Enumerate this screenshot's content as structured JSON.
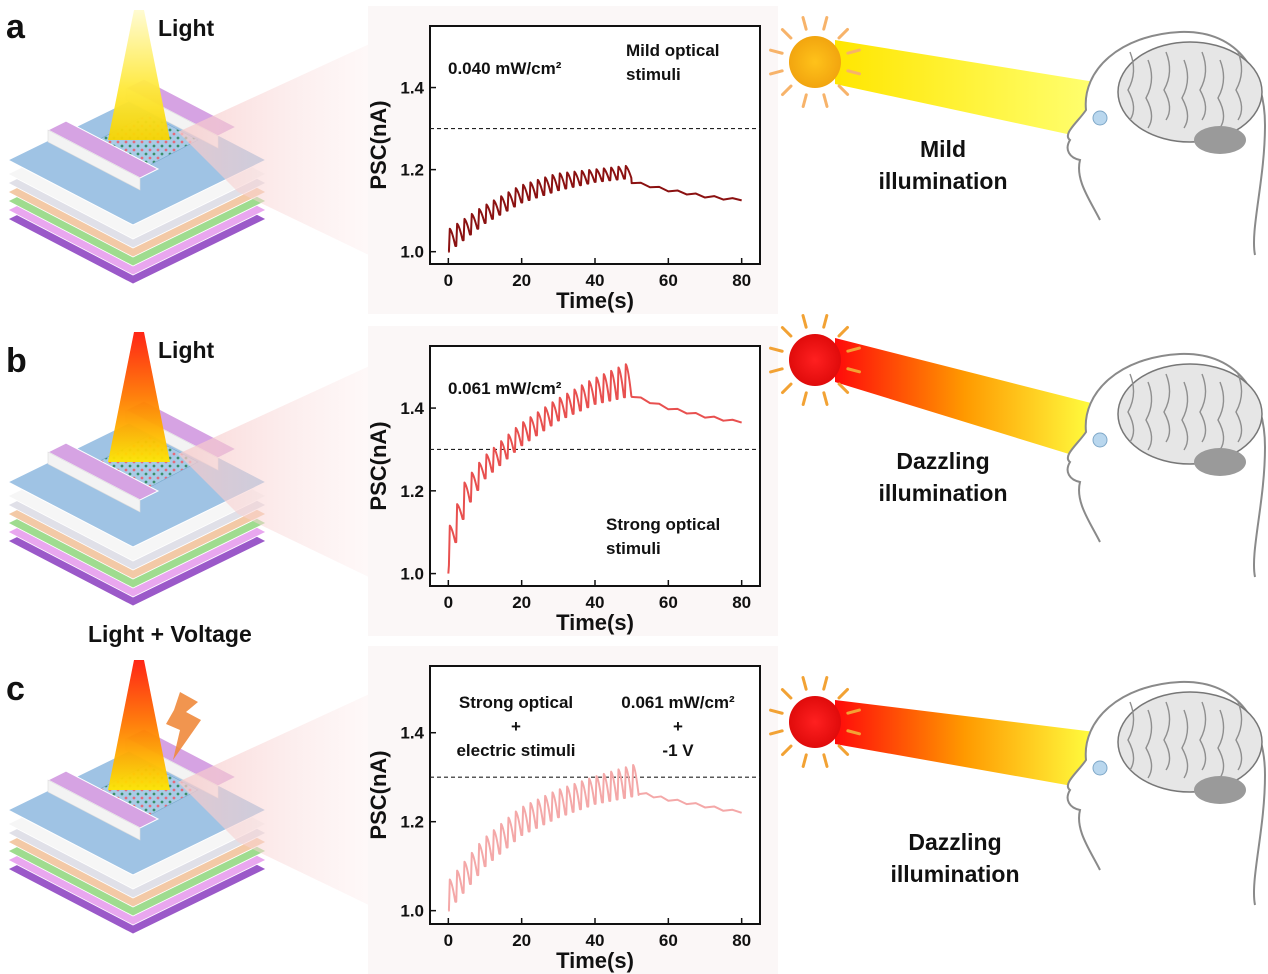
{
  "panels": [
    {
      "letter": "a",
      "stimulus_label": "Light",
      "annotation_left": [
        "0.040 mW/cm²"
      ],
      "annotation_right": [
        "Mild  optical",
        "stimuli"
      ],
      "sun_color": "#f5b31a",
      "beam_colors": [
        "#ffd400",
        "#ffff66"
      ],
      "brain_caption": [
        "Mild",
        "illumination"
      ]
    },
    {
      "letter": "b",
      "stimulus_label": "Light",
      "annotation_left": [
        "0.061 mW/cm²"
      ],
      "annotation_right": [
        "Strong optical",
        "stimuli"
      ],
      "sun_color": "#ee1c1c",
      "beam_colors": [
        "#ff0000",
        "#ffff33"
      ],
      "brain_caption": [
        "Dazzling",
        "illumination"
      ]
    },
    {
      "letter": "c",
      "stimulus_label": "Light + Voltage",
      "annotation_left": [
        "Strong optical",
        "+",
        "electric stimuli"
      ],
      "annotation_right": [
        "0.061 mW/cm²",
        "+",
        "-1 V"
      ],
      "sun_color": "#ee1c1c",
      "beam_colors": [
        "#ff0000",
        "#ffff33"
      ],
      "brain_caption": [
        "Dazzling",
        "illumination"
      ]
    }
  ],
  "chart_data": [
    {
      "type": "line",
      "xlabel": "Time(s)",
      "ylabel": "PSC(nA)",
      "xlim": [
        -5,
        85
      ],
      "ylim": [
        0.97,
        1.55
      ],
      "xticks": [
        0,
        20,
        40,
        60,
        80
      ],
      "yticks": [
        1.0,
        1.2,
        1.4
      ],
      "threshold": 1.3,
      "color": "#8b1111",
      "pulse_period_s": 2,
      "pulses_end_s": 50,
      "series_start_value": 1.0,
      "envelope_low": [
        [
          0,
          1.0
        ],
        [
          10,
          1.07
        ],
        [
          20,
          1.12
        ],
        [
          30,
          1.15
        ],
        [
          40,
          1.17
        ],
        [
          50,
          1.18
        ]
      ],
      "envelope_high": [
        [
          0,
          1.05
        ],
        [
          10,
          1.11
        ],
        [
          20,
          1.16
        ],
        [
          30,
          1.19
        ],
        [
          40,
          1.2
        ],
        [
          50,
          1.21
        ]
      ],
      "decay": [
        [
          50,
          1.17
        ],
        [
          60,
          1.15
        ],
        [
          70,
          1.135
        ],
        [
          80,
          1.125
        ]
      ]
    },
    {
      "type": "line",
      "xlabel": "Time(s)",
      "ylabel": "PSC(nA)",
      "xlim": [
        -5,
        85
      ],
      "ylim": [
        0.97,
        1.55
      ],
      "xticks": [
        0,
        20,
        40,
        60,
        80
      ],
      "yticks": [
        1.0,
        1.2,
        1.4
      ],
      "threshold": 1.3,
      "color": "#e8504f",
      "pulse_period_s": 2,
      "pulses_end_s": 50,
      "series_start_value": 1.0,
      "envelope_low": [
        [
          0,
          1.02
        ],
        [
          5,
          1.16
        ],
        [
          10,
          1.23
        ],
        [
          20,
          1.31
        ],
        [
          30,
          1.37
        ],
        [
          40,
          1.41
        ],
        [
          50,
          1.43
        ]
      ],
      "envelope_high": [
        [
          0,
          1.09
        ],
        [
          5,
          1.22
        ],
        [
          10,
          1.28
        ],
        [
          20,
          1.36
        ],
        [
          30,
          1.42
        ],
        [
          40,
          1.47
        ],
        [
          50,
          1.51
        ]
      ],
      "decay": [
        [
          50,
          1.43
        ],
        [
          60,
          1.4
        ],
        [
          70,
          1.38
        ],
        [
          80,
          1.365
        ]
      ]
    },
    {
      "type": "line",
      "xlabel": "Time(s)",
      "ylabel": "PSC(nA)",
      "xlim": [
        -5,
        85
      ],
      "ylim": [
        0.97,
        1.55
      ],
      "xticks": [
        0,
        20,
        40,
        60,
        80
      ],
      "yticks": [
        1.0,
        1.2,
        1.4
      ],
      "threshold": 1.3,
      "color": "#f4a8a8",
      "pulse_period_s": 2,
      "pulses_end_s": 52,
      "series_start_value": 1.0,
      "envelope_low": [
        [
          0,
          1.0
        ],
        [
          10,
          1.1
        ],
        [
          20,
          1.17
        ],
        [
          30,
          1.21
        ],
        [
          40,
          1.24
        ],
        [
          52,
          1.26
        ]
      ],
      "envelope_high": [
        [
          0,
          1.06
        ],
        [
          10,
          1.16
        ],
        [
          20,
          1.23
        ],
        [
          30,
          1.27
        ],
        [
          40,
          1.3
        ],
        [
          52,
          1.33
        ]
      ],
      "decay": [
        [
          52,
          1.265
        ],
        [
          60,
          1.25
        ],
        [
          70,
          1.235
        ],
        [
          80,
          1.22
        ]
      ]
    }
  ]
}
